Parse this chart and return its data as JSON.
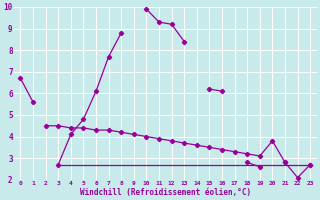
{
  "xlabel": "Windchill (Refroidissement éolien,°C)",
  "xlim": [
    -0.5,
    23.5
  ],
  "ylim": [
    2,
    10
  ],
  "xtick_vals": [
    0,
    1,
    2,
    3,
    4,
    5,
    6,
    7,
    8,
    9,
    10,
    11,
    12,
    13,
    14,
    15,
    16,
    17,
    18,
    19,
    20,
    21,
    22,
    23
  ],
  "ytick_vals": [
    2,
    3,
    4,
    5,
    6,
    7,
    8,
    9,
    10
  ],
  "bg_color": "#c8eaea",
  "grid_color": "#ffffff",
  "line_color": "#990099",
  "line1_x": [
    0,
    1,
    3,
    4,
    5,
    6,
    7,
    8,
    10,
    11,
    12,
    13,
    15,
    16,
    18,
    19,
    21,
    23
  ],
  "line1_y": [
    6.7,
    5.6,
    2.7,
    4.1,
    4.8,
    6.1,
    7.7,
    8.8,
    9.9,
    9.3,
    9.2,
    8.4,
    6.2,
    6.1,
    2.8,
    2.6,
    2.8,
    2.7
  ],
  "line1_gaps_after": [
    1,
    8,
    13,
    16,
    19,
    21
  ],
  "line2_x": [
    2,
    3,
    4,
    5,
    6,
    7,
    8,
    9,
    10,
    11,
    12,
    13,
    14,
    15,
    16,
    17,
    18,
    19,
    20,
    21,
    22,
    23
  ],
  "line2_y": [
    4.5,
    4.5,
    4.4,
    4.4,
    4.3,
    4.3,
    4.2,
    4.1,
    4.0,
    3.9,
    3.8,
    3.7,
    3.6,
    3.5,
    3.4,
    3.3,
    3.2,
    3.1,
    3.8,
    2.8,
    2.1,
    2.7
  ],
  "line3_x": [
    3,
    23
  ],
  "line3_y": [
    2.7,
    2.7
  ],
  "lw": 0.9,
  "ms": 2.2
}
